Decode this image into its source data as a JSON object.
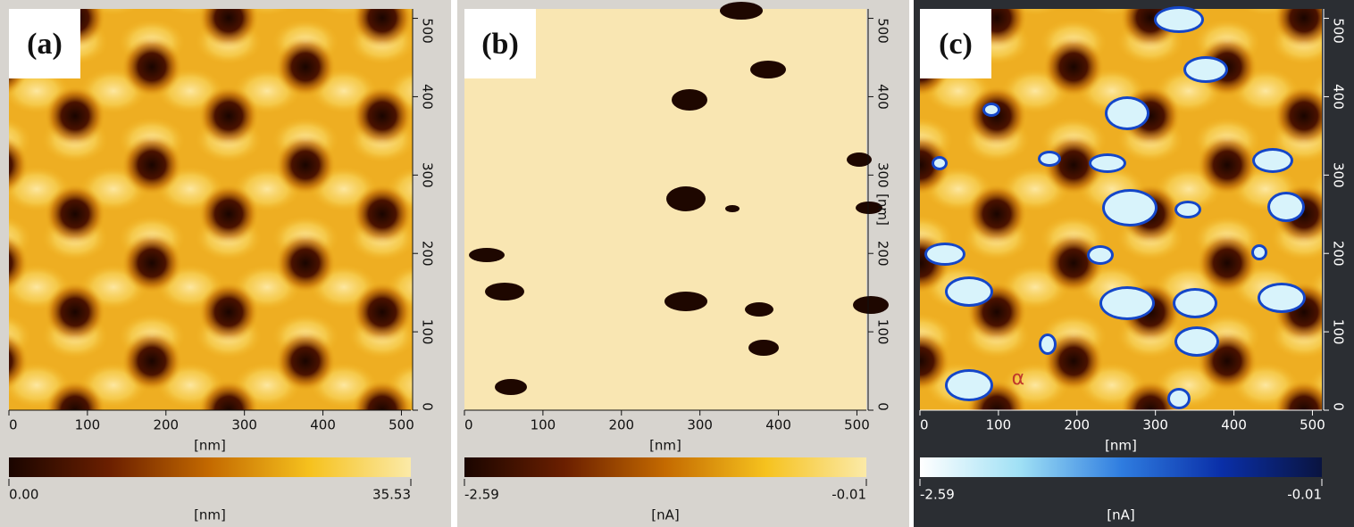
{
  "panels": [
    {
      "label": "(a)",
      "xlim": [
        0,
        512
      ],
      "ylim": [
        0,
        512
      ],
      "xticks": [
        0,
        100,
        200,
        300,
        400,
        500
      ],
      "yticks": [
        0,
        100,
        200,
        300,
        400,
        500
      ],
      "xlabel": "[nm]",
      "colorbar": {
        "ticks": [
          {
            "value": 0,
            "label": "0.00"
          },
          35.53
        ],
        "label": "[nm]",
        "colors": [
          "#1a0500",
          "#6b1f00",
          "#c46a00",
          "#f6c21e",
          "#fbeaa8"
        ]
      }
    },
    {
      "label": "(b)",
      "xlim": [
        0,
        512
      ],
      "ylim": [
        0,
        512
      ],
      "xticks": [
        0,
        100,
        200,
        300,
        400,
        500
      ],
      "yticks": [
        0,
        100,
        200,
        300,
        400,
        500
      ],
      "xlabel": "[nm]",
      "ylabel": "[nm]",
      "colorbar": {
        "ticks": [
          -2.59,
          -0.01
        ],
        "label": "[nA]",
        "colors": [
          "#1a0500",
          "#6b1f00",
          "#c46a00",
          "#f6c21e",
          "#fbeaa8"
        ]
      }
    },
    {
      "label": "(c)",
      "xlim": [
        0,
        512
      ],
      "ylim": [
        0,
        512
      ],
      "xticks": [
        0,
        100,
        200,
        300,
        400,
        500
      ],
      "yticks": [
        0,
        100,
        200,
        300,
        400,
        500
      ],
      "xlabel": "[nm]",
      "annotation": "α",
      "colorbar": {
        "ticks": [
          -2.59,
          -0.01
        ],
        "label": "[nA]",
        "colors": [
          "#ffffff",
          "#9fe0f5",
          "#2f7de0",
          "#0a2fa8",
          "#0a1440"
        ]
      }
    }
  ]
}
